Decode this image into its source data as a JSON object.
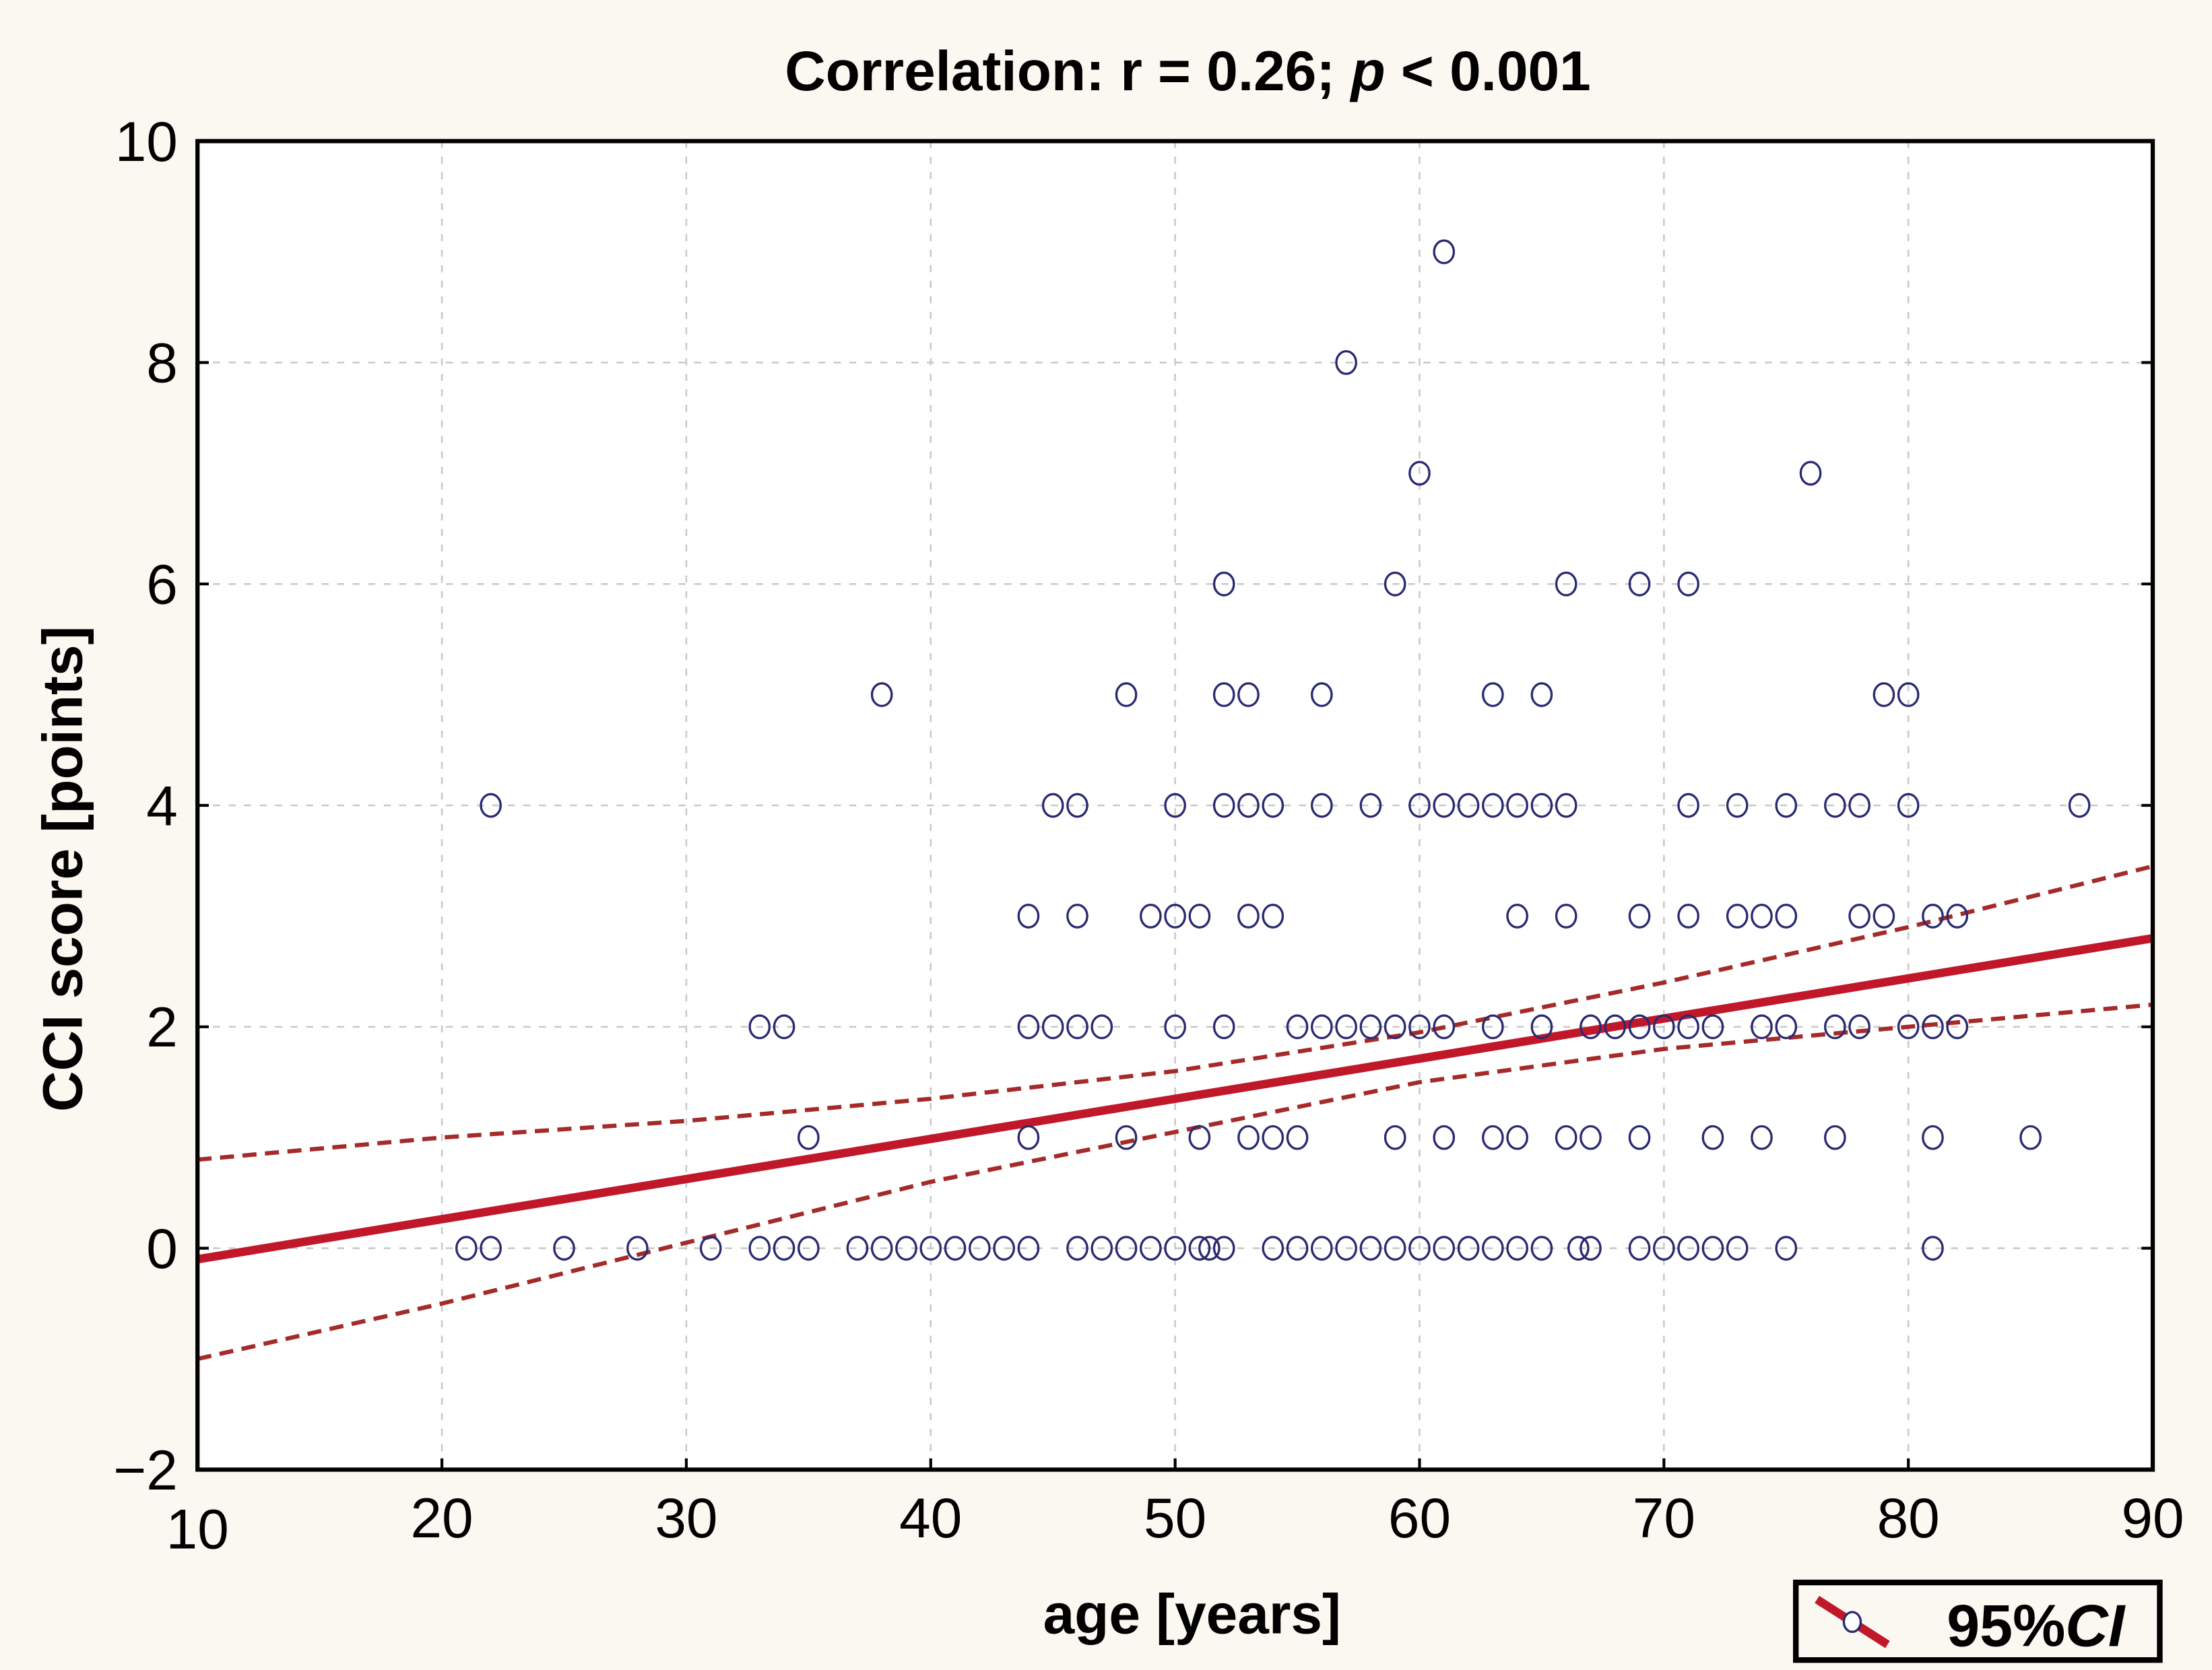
{
  "chart_data": {
    "type": "scatter",
    "title_prefix": "Correlation: r = 0.26; ",
    "title_p": "p",
    "title_suffix": " < 0.001",
    "xlabel": "age [years]",
    "ylabel": "CCI score [points]",
    "xlim": [
      10,
      90
    ],
    "ylim": [
      -2,
      10
    ],
    "xticks": [
      10,
      20,
      30,
      40,
      50,
      60,
      70,
      80,
      90
    ],
    "yticks": [
      -2,
      0,
      2,
      4,
      6,
      8,
      10
    ],
    "ytick_labels": [
      "−2",
      "0",
      "2",
      "4",
      "6",
      "8",
      "10"
    ],
    "grid": true,
    "legend": {
      "label_num": "95%",
      "label_ci": "CI",
      "placement": "bottom-right"
    },
    "colors": {
      "points": "#2a2a72",
      "fit": "#c0182a",
      "ci": "#a52a2a",
      "background": "#fbf8f1"
    },
    "regression": {
      "x": [
        10,
        90
      ],
      "y": [
        -0.1,
        2.8
      ]
    },
    "ci_x": [
      10,
      20,
      30,
      40,
      50,
      60,
      70,
      80,
      90
    ],
    "ci_upper": [
      0.8,
      1.0,
      1.15,
      1.35,
      1.6,
      1.95,
      2.4,
      2.9,
      3.45
    ],
    "ci_lower": [
      -1.0,
      -0.5,
      0.05,
      0.6,
      1.05,
      1.5,
      1.8,
      2.0,
      2.2
    ],
    "points_by_score": [
      {
        "y": 0,
        "x": [
          21,
          22,
          25,
          28,
          31,
          33,
          34,
          35,
          37,
          38,
          39,
          40,
          41,
          42,
          43,
          44,
          46,
          47,
          48,
          49,
          50,
          51,
          51.4,
          52,
          54,
          55,
          56,
          57,
          58,
          59,
          60,
          61,
          62,
          63,
          64,
          65,
          66.5,
          67,
          69,
          70,
          71,
          72,
          73,
          75,
          81
        ]
      },
      {
        "y": 1,
        "x": [
          35,
          44,
          48,
          51,
          53,
          54,
          55,
          59,
          61,
          63,
          64,
          66,
          67,
          69,
          72,
          74,
          77,
          81,
          85
        ]
      },
      {
        "y": 2,
        "x": [
          33,
          34,
          44,
          45,
          46,
          47,
          50,
          52,
          55,
          56,
          57,
          58,
          59,
          60,
          61,
          63,
          65,
          67,
          68,
          69,
          70,
          71,
          72,
          74,
          75,
          77,
          78,
          80,
          81,
          82
        ]
      },
      {
        "y": 3,
        "x": [
          44,
          46,
          49,
          50,
          51,
          53,
          54,
          64,
          66,
          69,
          71,
          73,
          74,
          75,
          78,
          79,
          81,
          82
        ]
      },
      {
        "y": 4,
        "x": [
          22,
          45,
          46,
          50,
          52,
          53,
          54,
          56,
          58,
          60,
          61,
          62,
          63,
          64,
          65,
          66,
          71,
          73,
          75,
          77,
          78,
          80,
          87
        ]
      },
      {
        "y": 5,
        "x": [
          38,
          48,
          52,
          53,
          56,
          63,
          65,
          79,
          80
        ]
      },
      {
        "y": 6,
        "x": [
          52,
          59,
          66,
          69,
          71
        ]
      },
      {
        "y": 7,
        "x": [
          60,
          76
        ]
      },
      {
        "y": 8,
        "x": [
          57
        ]
      },
      {
        "y": 9,
        "x": [
          61
        ]
      }
    ]
  }
}
